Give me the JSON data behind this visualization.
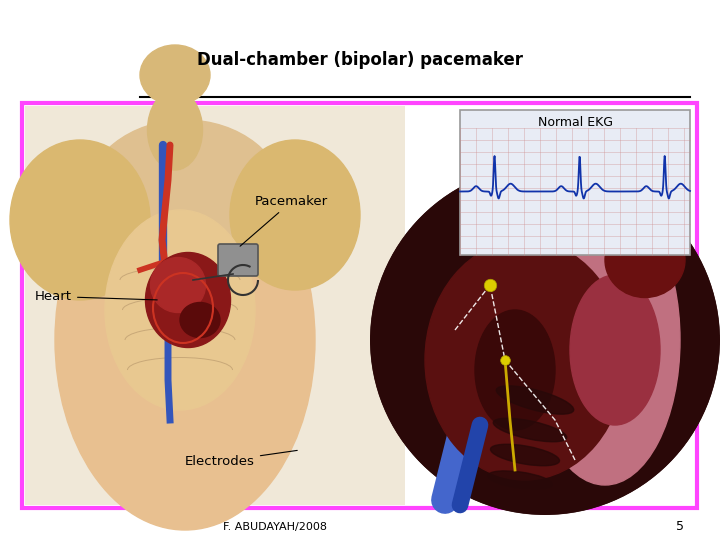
{
  "bg_color": "#ffffff",
  "teal_color": "#007070",
  "magenta_color": "#ff44ff",
  "black_line_color": "#000000",
  "title": "Dual-chamber (bipolar) pacemaker",
  "title_fontsize": 12,
  "subtitle": "F. ABUDAYAH/2008",
  "subtitle_fontsize": 8,
  "page_num": "5",
  "page_num_fontsize": 9,
  "label_pacemaker": "Pacemaker",
  "label_heart": "Heart",
  "label_electrodes": "Electrodes",
  "label_normal_ekg": "Normal EKG",
  "skin_color": "#e8c090",
  "skin_dark": "#d4a870",
  "heart_dark": "#7a1515",
  "heart_red": "#aa2020",
  "heart_pink": "#d4708a",
  "vessel_red": "#cc3322",
  "vessel_blue": "#3355bb",
  "pacemaker_gray": "#888888",
  "ekg_bg": "#e8ecf5",
  "ekg_line_color": "#1133aa",
  "ekg_grid_color": "#cc8888",
  "inner_heart_dark": "#2a0808",
  "inner_heart_mid": "#5a1010",
  "inner_heart_pink": "#c06070",
  "inner_muscle": "#3a0a0a",
  "yellow_electrode": "#ddcc00"
}
